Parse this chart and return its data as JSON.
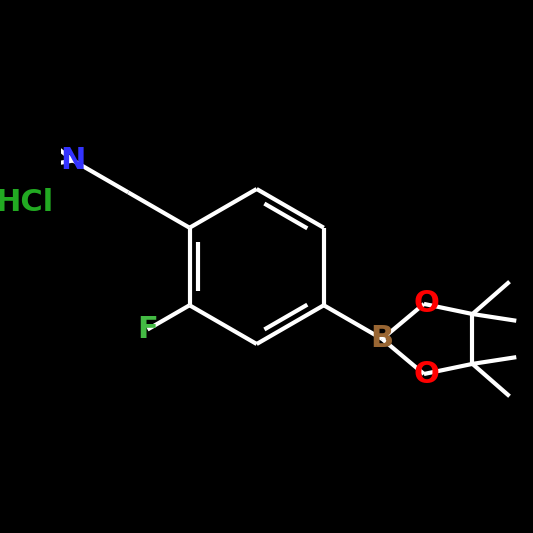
{
  "background_color": "#000000",
  "bond_color": "#ffffff",
  "bond_width": 3.0,
  "atoms": {
    "N": {
      "color": "#3333ff",
      "fontsize": 22,
      "fontweight": "bold"
    },
    "B": {
      "color": "#996633",
      "fontsize": 22,
      "fontweight": "bold"
    },
    "O": {
      "color": "#ff0000",
      "fontsize": 22,
      "fontweight": "bold"
    },
    "F": {
      "color": "#44bb44",
      "fontsize": 22,
      "fontweight": "bold"
    },
    "HCl": {
      "color": "#22aa22",
      "fontsize": 22,
      "fontweight": "bold"
    }
  },
  "figsize": [
    5.33,
    5.33
  ],
  "dpi": 100,
  "xlim": [
    -3.2,
    3.8
  ],
  "ylim": [
    -3.2,
    3.2
  ]
}
